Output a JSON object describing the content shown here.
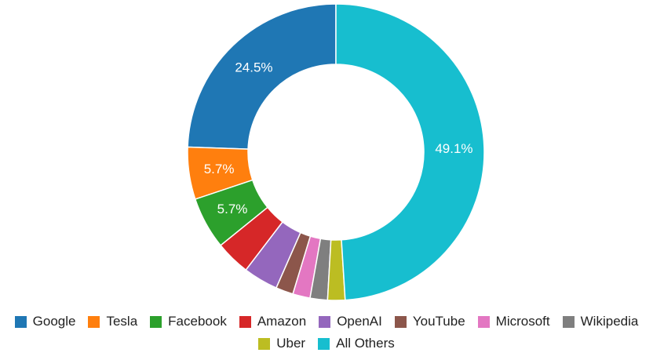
{
  "chart_data": {
    "type": "pie",
    "donut": true,
    "title": "",
    "categories": [
      "Google",
      "Tesla",
      "Facebook",
      "Amazon",
      "OpenAI",
      "YouTube",
      "Microsoft",
      "Wikipedia",
      "Uber",
      "All Others"
    ],
    "values": [
      24.5,
      5.7,
      5.7,
      3.8,
      3.8,
      1.9,
      1.9,
      1.9,
      1.9,
      49.1
    ],
    "data_labels": [
      "24.5%",
      "5.7%",
      "5.7%",
      "",
      "",
      "",
      "",
      "",
      "",
      "49.1%"
    ],
    "colors": [
      "#1f77b4",
      "#ff7f0e",
      "#2ca02c",
      "#d62728",
      "#9467bd",
      "#8c564b",
      "#e377c2",
      "#7f7f7f",
      "#bcbd22",
      "#17becf"
    ],
    "legend_position": "bottom"
  }
}
